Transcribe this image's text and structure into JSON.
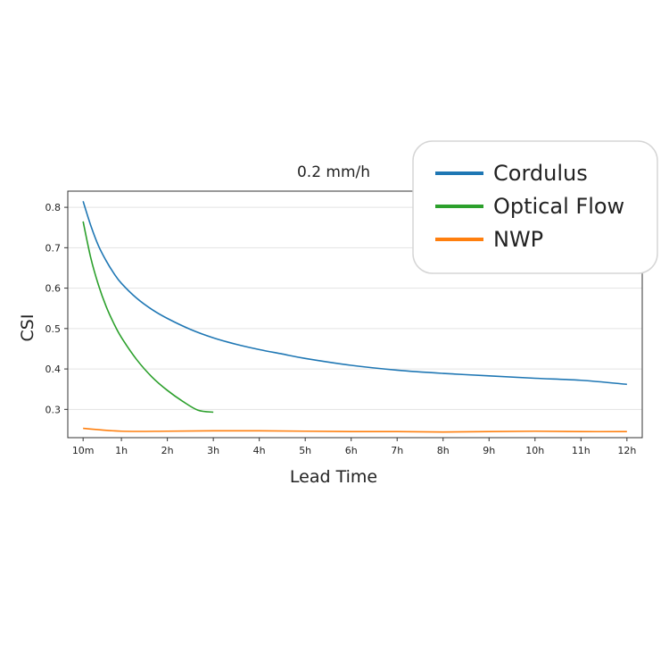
{
  "chart_data": {
    "type": "line",
    "title": "0.2 mm/h",
    "xlabel": "Lead Time",
    "ylabel": "CSI",
    "x_tick_labels": [
      "10m",
      "1h",
      "2h",
      "3h",
      "4h",
      "5h",
      "6h",
      "7h",
      "8h",
      "9h",
      "10h",
      "11h",
      "12h"
    ],
    "x_tick_minutes": [
      10,
      60,
      120,
      180,
      240,
      300,
      360,
      420,
      480,
      540,
      600,
      660,
      720
    ],
    "xlim": [
      -10,
      740
    ],
    "ylim": [
      0.23,
      0.84
    ],
    "y_ticks": [
      0.3,
      0.4,
      0.5,
      0.6,
      0.7,
      0.8
    ],
    "y_tick_labels": [
      "0.3",
      "0.4",
      "0.5",
      "0.6",
      "0.7",
      "0.8"
    ],
    "grid": "horizontal",
    "legend_position": "top-right",
    "series": [
      {
        "name": "Cordulus",
        "color": "#1f77b4",
        "x": [
          10,
          20,
          30,
          40,
          50,
          60,
          80,
          100,
          120,
          150,
          180,
          210,
          240,
          270,
          300,
          360,
          420,
          480,
          540,
          600,
          660,
          720
        ],
        "y": [
          0.815,
          0.755,
          0.705,
          0.668,
          0.637,
          0.612,
          0.575,
          0.547,
          0.525,
          0.498,
          0.477,
          0.461,
          0.448,
          0.437,
          0.426,
          0.409,
          0.397,
          0.389,
          0.383,
          0.377,
          0.372,
          0.362
        ]
      },
      {
        "name": "Optical Flow",
        "color": "#2ca02c",
        "x": [
          10,
          20,
          30,
          40,
          50,
          60,
          80,
          100,
          120,
          140,
          160,
          180
        ],
        "y": [
          0.765,
          0.675,
          0.608,
          0.555,
          0.513,
          0.478,
          0.423,
          0.38,
          0.347,
          0.32,
          0.298,
          0.293
        ]
      },
      {
        "name": "NWP",
        "color": "#ff7f0e",
        "x": [
          10,
          60,
          120,
          180,
          240,
          300,
          360,
          420,
          480,
          540,
          600,
          660,
          720
        ],
        "y": [
          0.253,
          0.246,
          0.246,
          0.247,
          0.247,
          0.246,
          0.245,
          0.245,
          0.244,
          0.245,
          0.246,
          0.245,
          0.245
        ]
      }
    ]
  }
}
